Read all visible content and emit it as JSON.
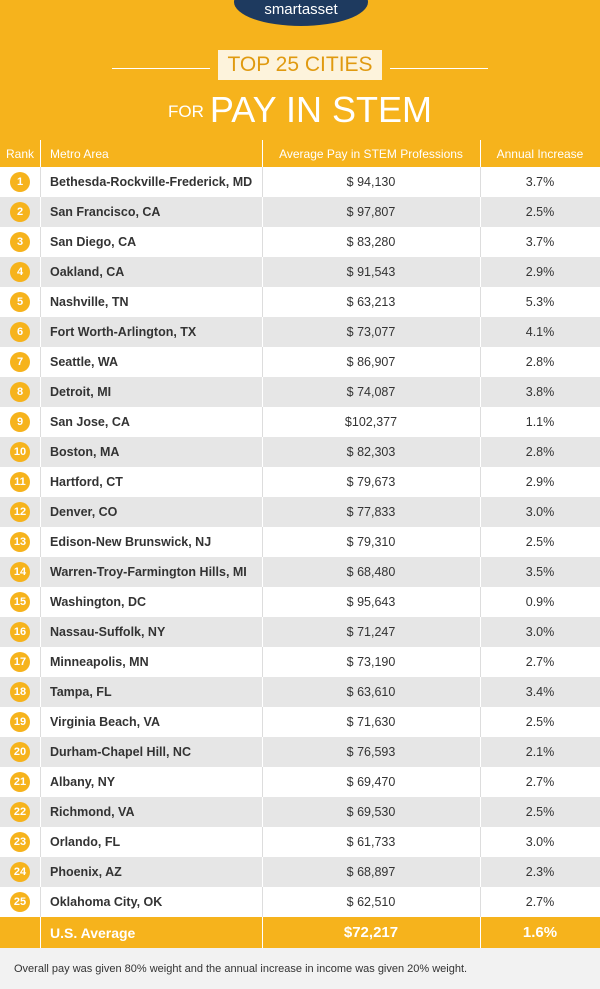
{
  "header": {
    "logo": "smartasset",
    "title": "TOP 25 CITIES",
    "subtitle_small": "FOR",
    "subtitle": "PAY IN STEM"
  },
  "table": {
    "columns": [
      "Rank",
      "Metro Area",
      "Average Pay in STEM Professions",
      "Annual Increase"
    ],
    "rows": [
      [
        "1",
        "Bethesda-Rockville-Frederick, MD",
        "$ 94,130",
        "3.7%"
      ],
      [
        "2",
        "San Francisco, CA",
        "$ 97,807",
        "2.5%"
      ],
      [
        "3",
        "San Diego, CA",
        "$ 83,280",
        "3.7%"
      ],
      [
        "4",
        "Oakland, CA",
        "$ 91,543",
        "2.9%"
      ],
      [
        "5",
        "Nashville, TN",
        "$ 63,213",
        "5.3%"
      ],
      [
        "6",
        "Fort Worth-Arlington, TX",
        "$ 73,077",
        "4.1%"
      ],
      [
        "7",
        "Seattle, WA",
        "$ 86,907",
        "2.8%"
      ],
      [
        "8",
        "Detroit, MI",
        "$ 74,087",
        "3.8%"
      ],
      [
        "9",
        "San Jose, CA",
        "$102,377",
        "1.1%"
      ],
      [
        "10",
        "Boston, MA",
        "$ 82,303",
        "2.8%"
      ],
      [
        "11",
        "Hartford, CT",
        "$ 79,673",
        "2.9%"
      ],
      [
        "12",
        "Denver, CO",
        "$ 77,833",
        "3.0%"
      ],
      [
        "13",
        "Edison-New Brunswick, NJ",
        "$ 79,310",
        "2.5%"
      ],
      [
        "14",
        "Warren-Troy-Farmington Hills, MI",
        "$ 68,480",
        "3.5%"
      ],
      [
        "15",
        "Washington, DC",
        "$ 95,643",
        "0.9%"
      ],
      [
        "16",
        "Nassau-Suffolk, NY",
        "$ 71,247",
        "3.0%"
      ],
      [
        "17",
        "Minneapolis, MN",
        "$ 73,190",
        "2.7%"
      ],
      [
        "18",
        "Tampa, FL",
        "$ 63,610",
        "3.4%"
      ],
      [
        "19",
        "Virginia Beach, VA",
        "$ 71,630",
        "2.5%"
      ],
      [
        "20",
        "Durham-Chapel Hill, NC",
        "$ 76,593",
        "2.1%"
      ],
      [
        "21",
        "Albany, NY",
        "$ 69,470",
        "2.7%"
      ],
      [
        "22",
        "Richmond, VA",
        "$ 69,530",
        "2.5%"
      ],
      [
        "23",
        "Orlando, FL",
        "$ 61,733",
        "3.0%"
      ],
      [
        "24",
        "Phoenix, AZ",
        "$ 68,897",
        "2.3%"
      ],
      [
        "25",
        "Oklahoma City, OK",
        "$ 62,510",
        "2.7%"
      ]
    ],
    "average": [
      "U.S. Average",
      "$72,217",
      "1.6%"
    ]
  },
  "footnote": "Overall pay was given 80% weight and the annual increase in income was given 20% weight."
}
